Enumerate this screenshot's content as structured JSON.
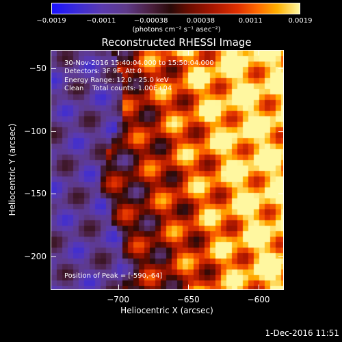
{
  "colorbar": {
    "tick_labels": [
      "-0.0019",
      "-0.0011",
      "-0.00038",
      "0.00038",
      "0.0011",
      "0.0019"
    ],
    "units": "(photons cm⁻² s⁻¹ asec⁻²)",
    "min": -0.0019,
    "max": 0.0019
  },
  "chart_data": {
    "type": "heatmap",
    "title": "Reconstructed RHESSI Image",
    "xlabel": "Heliocentric X (arcsec)",
    "ylabel": "Heliocentric Y (arcsec)",
    "xlim": [
      -748,
      -582
    ],
    "ylim": [
      -227,
      -35
    ],
    "x_ticks": [
      -700,
      -650,
      -600
    ],
    "y_ticks": [
      -50,
      -100,
      -150,
      -200
    ],
    "x_tick_labels": [
      "−700",
      "−650",
      "−600"
    ],
    "y_tick_labels": [
      "−50",
      "−100",
      "−150",
      "−200"
    ],
    "peak": [
      -590,
      -64
    ],
    "value_range": [
      -0.0019,
      0.0019
    ]
  },
  "info": {
    "line1": "30-Nov-2016 15:40:04.000 to 15:50:04.000",
    "line2": "Detectors: 3F 9F, Att 0",
    "line3": "Energy Range: 12.0 - 25.0 keV",
    "line4": "Clean    Total counts: 1.00E+04",
    "peak": "Position of Peak = [-590,-64]"
  },
  "timestamp": "1-Dec-2016 11:51"
}
